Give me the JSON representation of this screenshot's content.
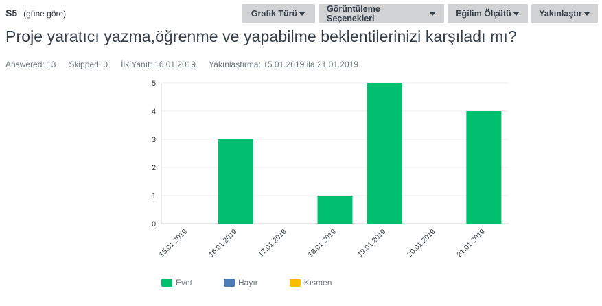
{
  "question": {
    "number": "S5",
    "subtitle": "(güne göre)",
    "title": "Proje yaratıcı yazma,öğrenme ve yapabilme beklentilerinizi karşıladı mı?"
  },
  "toolbar": {
    "buttons": [
      {
        "label": "Grafik Türü"
      },
      {
        "label": "Görüntüleme Seçenekleri"
      },
      {
        "label": "Eğilim Ölçütü"
      },
      {
        "label": "Yakınlaştır"
      }
    ]
  },
  "stats": {
    "answered": "Answered: 13",
    "skipped": "Skipped: 0",
    "first_response": "İlk Yanıt: 16.01.2019",
    "zoom_range": "Yakınlaştırma: 15.01.2019 ila 21.01.2019"
  },
  "colors": {
    "evet": "#00bf6f",
    "hayir": "#507cb6",
    "kismen": "#f9be00",
    "grid": "#ececec",
    "axis": "#cfcfcf"
  },
  "chart_data": {
    "type": "bar",
    "title": "Proje yaratıcı yazma,öğrenme ve yapabilme beklentilerinizi karşıladı mı?",
    "xlabel": "",
    "ylabel": "",
    "categories": [
      "15.01.2019",
      "16.01.2019",
      "17.01.2019",
      "18.01.2019",
      "19.01.2019",
      "20.01.2019",
      "21.01.2019"
    ],
    "series": [
      {
        "name": "Evet",
        "color": "#00bf6f",
        "values": [
          0,
          3,
          0,
          1,
          5,
          0,
          4
        ]
      },
      {
        "name": "Hayır",
        "color": "#507cb6",
        "values": [
          0,
          0,
          0,
          0,
          0,
          0,
          0
        ]
      },
      {
        "name": "Kısmen",
        "color": "#f9be00",
        "values": [
          0,
          0,
          0,
          0,
          0,
          0,
          0
        ]
      }
    ],
    "ylim": [
      0,
      5
    ],
    "yticks": [
      0,
      1,
      2,
      3,
      4,
      5
    ],
    "grid": true,
    "stacked": true,
    "legend_position": "bottom"
  }
}
